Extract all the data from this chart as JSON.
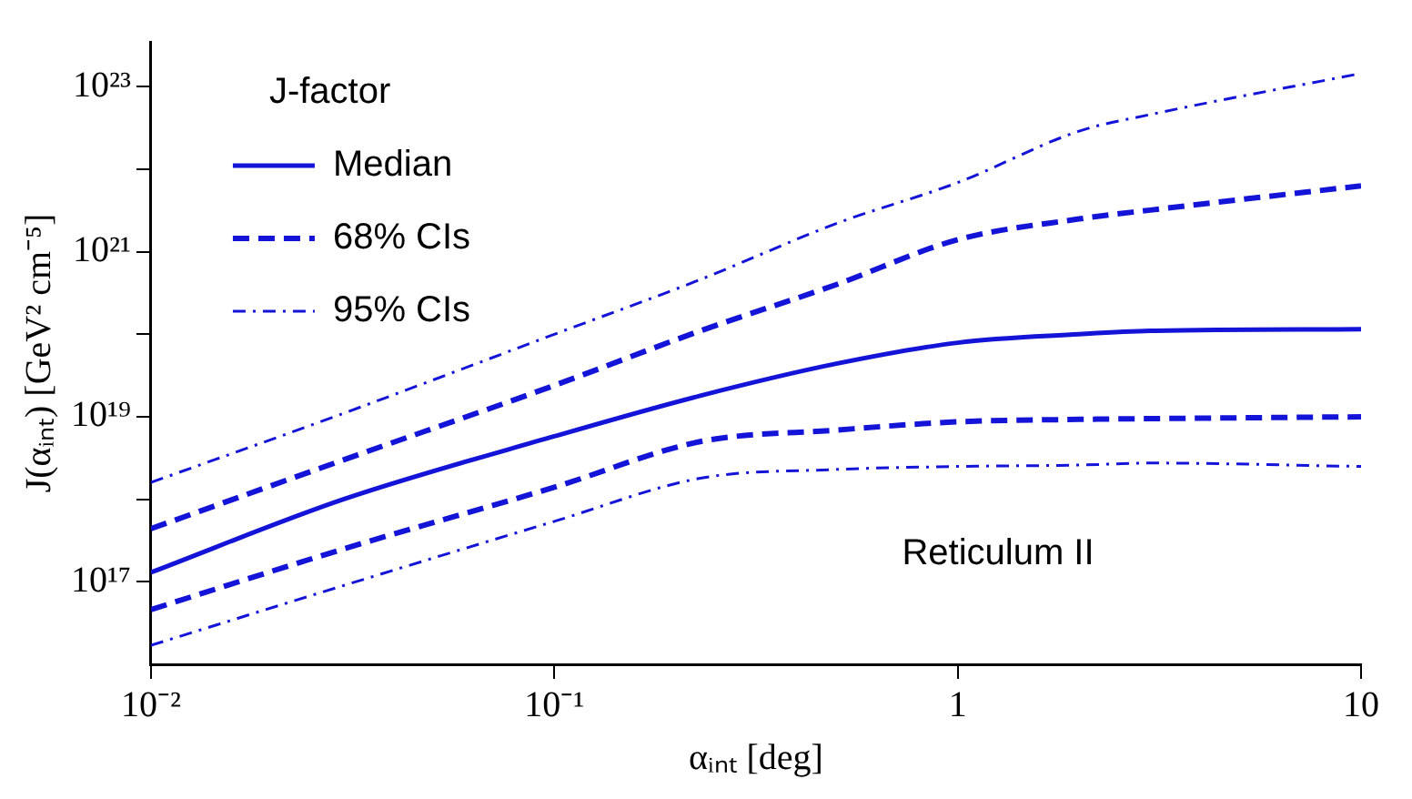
{
  "chart_data": {
    "type": "line",
    "xlabel": "αᵢₙₜ [deg]",
    "ylabel": "J(αᵢₙₜ) [GeV² cm⁻⁵]",
    "log": "xy",
    "legend": "top left",
    "legend_title": "J-factor",
    "grid": false,
    "marker": "none",
    "xlim": [
      0.01,
      10
    ],
    "ylim": [
      1e+16,
      3.5e+23
    ],
    "xticks": [
      {
        "value": 0.01,
        "label": "10⁻²"
      },
      {
        "value": 0.1,
        "label": "10⁻¹"
      },
      1,
      10
    ],
    "yticks": [
      {
        "value": 1e+17,
        "label": "10¹⁷"
      },
      {
        "value": 1e+18,
        "label": null
      },
      {
        "value": 1e+19,
        "label": "10¹⁹"
      },
      {
        "value": 1e+20,
        "label": null
      },
      {
        "value": 1e+21,
        "label": "10²¹"
      },
      {
        "value": 1e+22,
        "label": null
      },
      {
        "value": 1e+23,
        "label": "10²³"
      }
    ],
    "x": [
      0.01,
      0.03,
      0.1,
      0.23,
      0.5,
      1,
      2,
      3,
      10
    ],
    "series": [
      {
        "name": "Median",
        "color": "#1414d8",
        "line_style": "solid",
        "values": [
          1.3e+17,
          1e+18,
          5.8e+18,
          1.8e+19,
          4.4e+19,
          7.9e+19,
          1e+20,
          1.1e+20,
          1.15e+20
        ]
      },
      {
        "name": "68% CIs",
        "color": "#1414d8",
        "line_style": "dashed",
        "values": [
          4.4e+17,
          3e+18,
          2.4e+19,
          1.1e+20,
          4e+20,
          1.4e+21,
          2.5e+21,
          3.2e+21,
          6.3e+21
        ]
      },
      {
        "color": "#1414d8",
        "line_style": "dashed",
        "values": [
          4.6e+16,
          2.5e+17,
          1.4e+18,
          5e+18,
          6.9e+18,
          8.7e+18,
          9.3e+18,
          9.5e+18,
          1e+19
        ]
      },
      {
        "name": "95% CIs",
        "color": "#1414d8",
        "line_style": "dotted",
        "values": [
          1.6e+18,
          1.1e+19,
          1e+20,
          4.6e+20,
          2.2e+21,
          6.9e+21,
          2.9e+22,
          4.6e+22,
          1.45e+23
        ]
      },
      {
        "color": "#1414d8",
        "line_style": "dotted",
        "values": [
          1.7e+16,
          9e+16,
          5.4e+17,
          1.8e+18,
          2.3e+18,
          2.5e+18,
          2.6e+18,
          2.75e+18,
          2.5e+18
        ]
      }
    ],
    "annotations": [
      "Reticulum II"
    ]
  }
}
